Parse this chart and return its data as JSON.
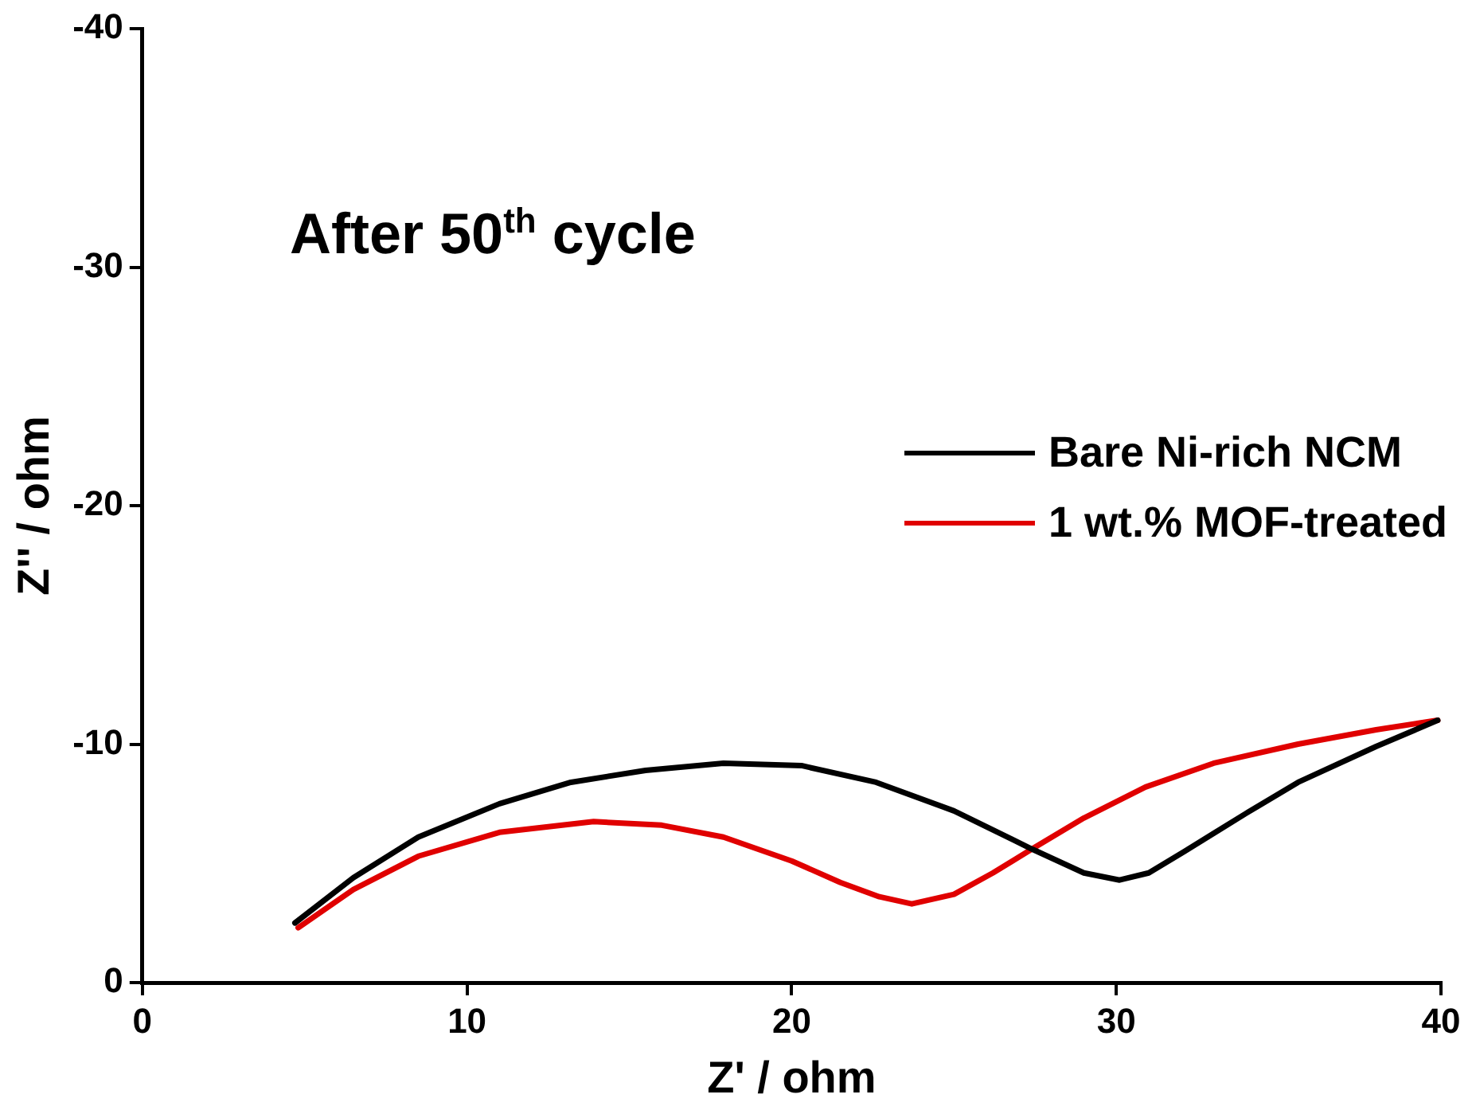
{
  "chart_data": {
    "type": "line",
    "title": "After 50$^{th}$ cycle",
    "xlabel": "Z' / ohm",
    "ylabel": "Z'' / ohm",
    "xlim": [
      0,
      40
    ],
    "xticks": [
      0,
      10,
      20,
      30,
      40
    ],
    "ylim": [
      0,
      -40
    ],
    "yticks": [
      0,
      -10,
      -20,
      -30,
      -40
    ],
    "grid": false,
    "legend": "right",
    "marker": "none",
    "line_style": "solid",
    "series": [
      {
        "name": "Bare Ni-rich NCM",
        "color": "#000000",
        "x": [
          4.7,
          6.5,
          8.5,
          11,
          13.2,
          15.5,
          17.9,
          20.3,
          22.6,
          25,
          27.4,
          29,
          30.1,
          31,
          32.1,
          34,
          35.6,
          38,
          39.9
        ],
        "values": [
          -2.5,
          -4.4,
          -6.1,
          -7.5,
          -8.4,
          -8.9,
          -9.2,
          -9.1,
          -8.4,
          -7.2,
          -5.6,
          -4.6,
          -4.3,
          -4.6,
          -5.5,
          -7.1,
          -8.4,
          -9.9,
          -11
        ]
      },
      {
        "name": "1 wt.% MOF-treated",
        "color": "#e00000",
        "x": [
          4.8,
          6.5,
          8.5,
          11,
          13.9,
          16,
          17.9,
          20,
          21.5,
          22.7,
          23.7,
          25,
          26.2,
          27.4,
          29,
          30.9,
          33,
          35.6,
          38,
          39.9
        ],
        "values": [
          -2.3,
          -3.9,
          -5.3,
          -6.3,
          -6.75,
          -6.6,
          -6.1,
          -5.1,
          -4.2,
          -3.6,
          -3.3,
          -3.7,
          -4.6,
          -5.6,
          -6.9,
          -8.2,
          -9.2,
          -10,
          -10.6,
          -11
        ]
      }
    ]
  }
}
